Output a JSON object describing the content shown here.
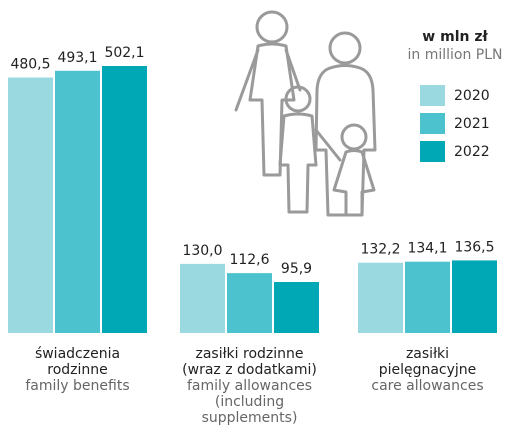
{
  "chart_data": {
    "type": "bar",
    "legend_title": "w mln zł",
    "legend_subtitle": "in million PLN",
    "categories": [
      "świadczenia rodzinne",
      "zasiłki rodzinne (wraz z dodatkami)",
      "zasiłki pielęgnacyjne"
    ],
    "categories_en": [
      "family benefits",
      "family allowances (including supplements)",
      "care allowances"
    ],
    "series": [
      {
        "name": "2020",
        "color": "#9bd9e1",
        "values": [
          480.5,
          130.0,
          132.2
        ],
        "value_labels": [
          "480,5",
          "130,0",
          "132,2"
        ]
      },
      {
        "name": "2021",
        "color": "#4cc2cf",
        "values": [
          493.1,
          112.6,
          134.1
        ],
        "value_labels": [
          "493,1",
          "112,6",
          "134,1"
        ]
      },
      {
        "name": "2022",
        "color": "#00a7b5",
        "values": [
          502.1,
          95.9,
          136.5
        ],
        "value_labels": [
          "502,1",
          "95,9",
          "136,5"
        ]
      }
    ]
  }
}
